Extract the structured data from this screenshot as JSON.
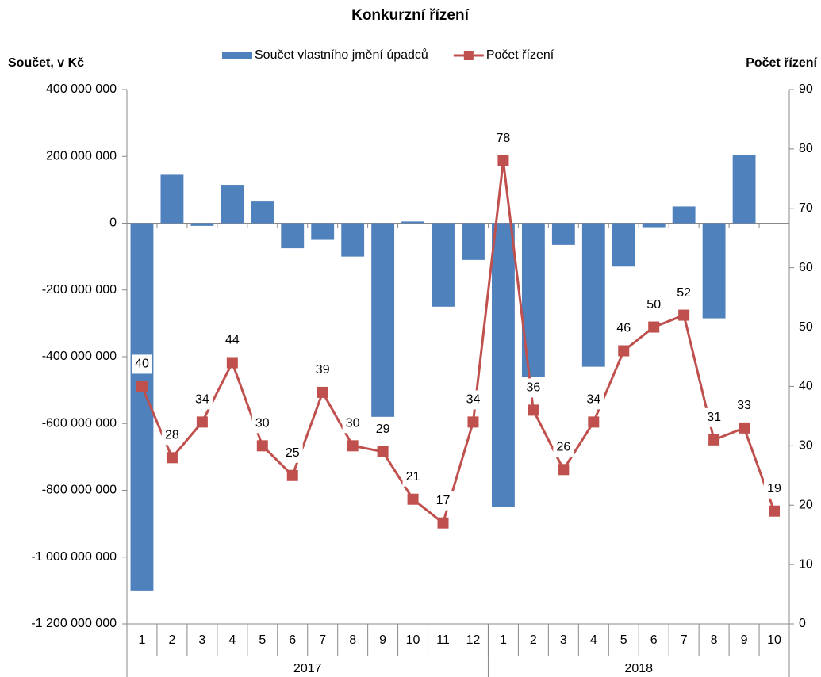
{
  "chart_data": {
    "type": "bar_line",
    "title": "Konkurzní řízení",
    "y_label": "Součet, v Kč",
    "y2_label": "Počet řízení",
    "categories": [
      "1",
      "2",
      "3",
      "4",
      "5",
      "6",
      "7",
      "8",
      "9",
      "10",
      "11",
      "12",
      "1",
      "2",
      "3",
      "4",
      "5",
      "6",
      "7",
      "8",
      "9",
      "10"
    ],
    "x_groups": [
      "2017",
      "2018"
    ],
    "series": [
      {
        "name": "Součet vlastního jmění úpadců",
        "type": "bar",
        "color": "#4f81bd",
        "values": [
          -1100000000,
          145000000,
          -8000000,
          115000000,
          65000000,
          -75000000,
          -50000000,
          -100000000,
          -580000000,
          5000000,
          -250000000,
          -110000000,
          -850000000,
          -460000000,
          -65000000,
          -430000000,
          -130000000,
          -12000000,
          50000000,
          -285000000,
          205000000,
          0
        ]
      },
      {
        "name": "Počet řízení",
        "type": "line",
        "axis": "y2",
        "color": "#c0504d",
        "values": [
          40,
          28,
          34,
          44,
          30,
          25,
          39,
          30,
          29,
          21,
          17,
          34,
          78,
          36,
          26,
          34,
          46,
          50,
          52,
          31,
          33,
          19
        ]
      }
    ],
    "ylim": [
      -1200000000,
      400000000
    ],
    "yticks": [
      {
        "value": -1200000000,
        "label": "-1 200 000 000"
      },
      {
        "value": -1000000000,
        "label": "-1 000 000 000"
      },
      {
        "value": -800000000,
        "label": "-800 000 000"
      },
      {
        "value": -600000000,
        "label": "-600 000 000"
      },
      {
        "value": -400000000,
        "label": "-400 000 000"
      },
      {
        "value": -200000000,
        "label": "-200 000 000"
      },
      0,
      {
        "value": 200000000,
        "label": "200 000 000"
      },
      {
        "value": 400000000,
        "label": "400 000 000"
      }
    ],
    "y2lim": [
      0,
      90
    ],
    "y2ticks": [
      0,
      10,
      20,
      30,
      40,
      50,
      60,
      70,
      80,
      90
    ],
    "grid": false
  }
}
